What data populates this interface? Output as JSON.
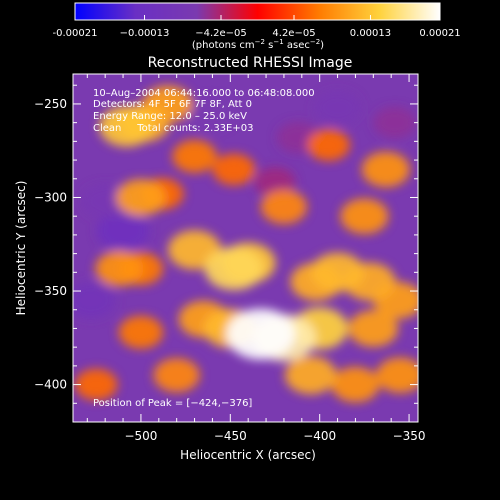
{
  "chart_data": {
    "type": "heatmap",
    "title": "Reconstructed RHESSI Image",
    "xlabel": "Heliocentric X (arcsec)",
    "ylabel": "Heliocentric Y (arcsec)",
    "xlim": [
      -538,
      -345
    ],
    "ylim": [
      -420,
      -234
    ],
    "xticks": [
      -500,
      -450,
      -400,
      -350
    ],
    "yticks": [
      -250,
      -300,
      -350,
      -400
    ],
    "xtick_labels": [
      "−500",
      "−450",
      "−400",
      "−350"
    ],
    "ytick_labels": [
      "−250",
      "−300",
      "−350",
      "−400"
    ],
    "colorbar": {
      "range": [
        -0.00021,
        0.00021
      ],
      "tick_labels": [
        "-0.00021",
        "−0.00013",
        "−4.2e−05",
        "4.2e−05",
        "0.00013",
        "0.00021"
      ],
      "ticks": [
        -0.00021,
        -0.00013,
        -4.2e-05,
        4.2e-05,
        0.00013,
        0.00021
      ],
      "units_main": "(photons cm",
      "units_exp1": "−2",
      "units_mid1": " s",
      "units_exp2": "−1",
      "units_mid2": " asec",
      "units_exp3": "−2",
      "units_end": ")",
      "colors": [
        "#0000ff",
        "#6a2fc4",
        "#7a3ab0",
        "#ff0000",
        "#ff7a00",
        "#ffd23c",
        "#ffffff"
      ]
    },
    "annotations": {
      "time": "10–Aug–2004 06:44:16.000 to 06:48:08.000",
      "detectors": "Detectors: 4F 5F 6F 7F 8F, Att 0",
      "energy": "Energy Range: 12.0 – 25.0 keV",
      "clean": "Clean     Total counts: 2.33E+03",
      "peak": "Position of Peak = [−424,−376]"
    },
    "peak_position": [
      -424,
      -376
    ],
    "blobs": [
      {
        "x": -508,
        "y": -262,
        "v": 0.00013
      },
      {
        "x": -498,
        "y": -260,
        "v": 0.00011
      },
      {
        "x": -485,
        "y": -250,
        "v": 0.0001
      },
      {
        "x": -500,
        "y": -300,
        "v": 0.0001
      },
      {
        "x": -488,
        "y": -298,
        "v": 6e-05
      },
      {
        "x": -470,
        "y": -278,
        "v": 7e-05
      },
      {
        "x": -448,
        "y": -285,
        "v": 6e-05
      },
      {
        "x": -512,
        "y": -338,
        "v": 9e-05
      },
      {
        "x": -500,
        "y": -338,
        "v": 7e-05
      },
      {
        "x": -470,
        "y": -328,
        "v": 0.00012
      },
      {
        "x": -448,
        "y": -338,
        "v": 0.00015
      },
      {
        "x": -440,
        "y": -335,
        "v": 0.00013
      },
      {
        "x": -465,
        "y": -365,
        "v": 0.0001
      },
      {
        "x": -450,
        "y": -370,
        "v": 0.00012
      },
      {
        "x": -433,
        "y": -373,
        "v": 0.00021
      },
      {
        "x": -420,
        "y": -375,
        "v": 0.00018
      },
      {
        "x": -400,
        "y": -370,
        "v": 0.00014
      },
      {
        "x": -390,
        "y": -340,
        "v": 0.00012
      },
      {
        "x": -402,
        "y": -345,
        "v": 0.00011
      },
      {
        "x": -372,
        "y": -345,
        "v": 0.00011
      },
      {
        "x": -370,
        "y": -370,
        "v": 0.0001
      },
      {
        "x": -405,
        "y": -395,
        "v": 0.00011
      },
      {
        "x": -380,
        "y": -400,
        "v": 9e-05
      },
      {
        "x": -356,
        "y": -355,
        "v": 0.0001
      },
      {
        "x": -355,
        "y": -395,
        "v": 9e-05
      },
      {
        "x": -480,
        "y": -395,
        "v": 8e-05
      },
      {
        "x": -500,
        "y": -372,
        "v": 7e-05
      },
      {
        "x": -525,
        "y": -400,
        "v": 6e-05
      },
      {
        "x": -420,
        "y": -305,
        "v": 8e-05
      },
      {
        "x": -375,
        "y": -310,
        "v": 9e-05
      },
      {
        "x": -395,
        "y": -272,
        "v": 6e-05
      },
      {
        "x": -363,
        "y": -285,
        "v": 9e-05
      },
      {
        "x": -510,
        "y": -318,
        "v": -0.00012
      },
      {
        "x": -520,
        "y": -302,
        "v": -8e-05
      },
      {
        "x": -528,
        "y": -355,
        "v": -0.0001
      },
      {
        "x": -460,
        "y": -255,
        "v": -7e-05
      },
      {
        "x": -412,
        "y": -268,
        "v": -6e-05
      },
      {
        "x": -390,
        "y": -252,
        "v": -8e-05
      },
      {
        "x": -425,
        "y": -292,
        "v": -5e-05
      },
      {
        "x": -358,
        "y": -260,
        "v": -6e-05
      }
    ]
  }
}
